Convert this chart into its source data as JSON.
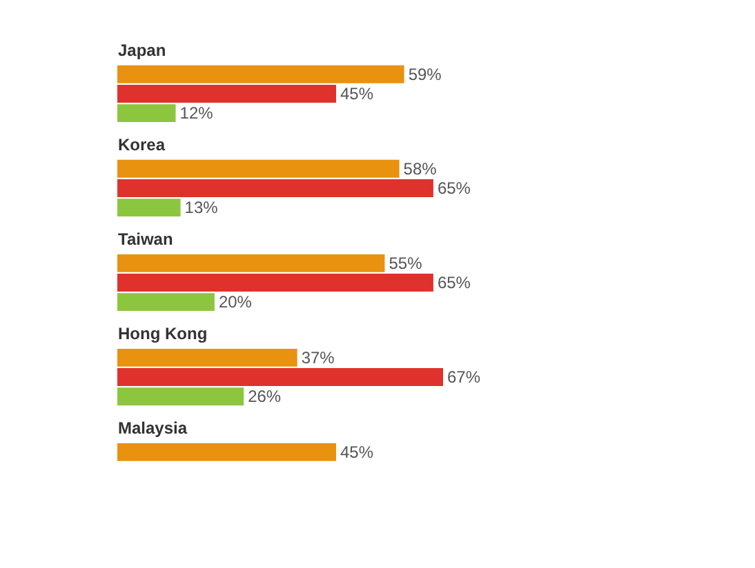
{
  "chart_data": {
    "type": "bar",
    "orientation": "horizontal",
    "categories": [
      "Japan",
      "Korea",
      "Taiwan",
      "Hong Kong",
      "Malaysia"
    ],
    "series": [
      {
        "color": "#e8920f",
        "values": [
          59,
          58,
          55,
          37,
          45
        ],
        "value_labels": [
          "59%",
          "58%",
          "55%",
          "37%",
          "45%"
        ]
      },
      {
        "color": "#df322c",
        "values": [
          45,
          65,
          65,
          67,
          null
        ],
        "value_labels": [
          "45%",
          "65%",
          "65%",
          "67%",
          null
        ]
      },
      {
        "color": "#8cc63f",
        "values": [
          12,
          13,
          20,
          26,
          null
        ],
        "value_labels": [
          "12%",
          "13%",
          "20%",
          "26%",
          null
        ]
      }
    ]
  }
}
